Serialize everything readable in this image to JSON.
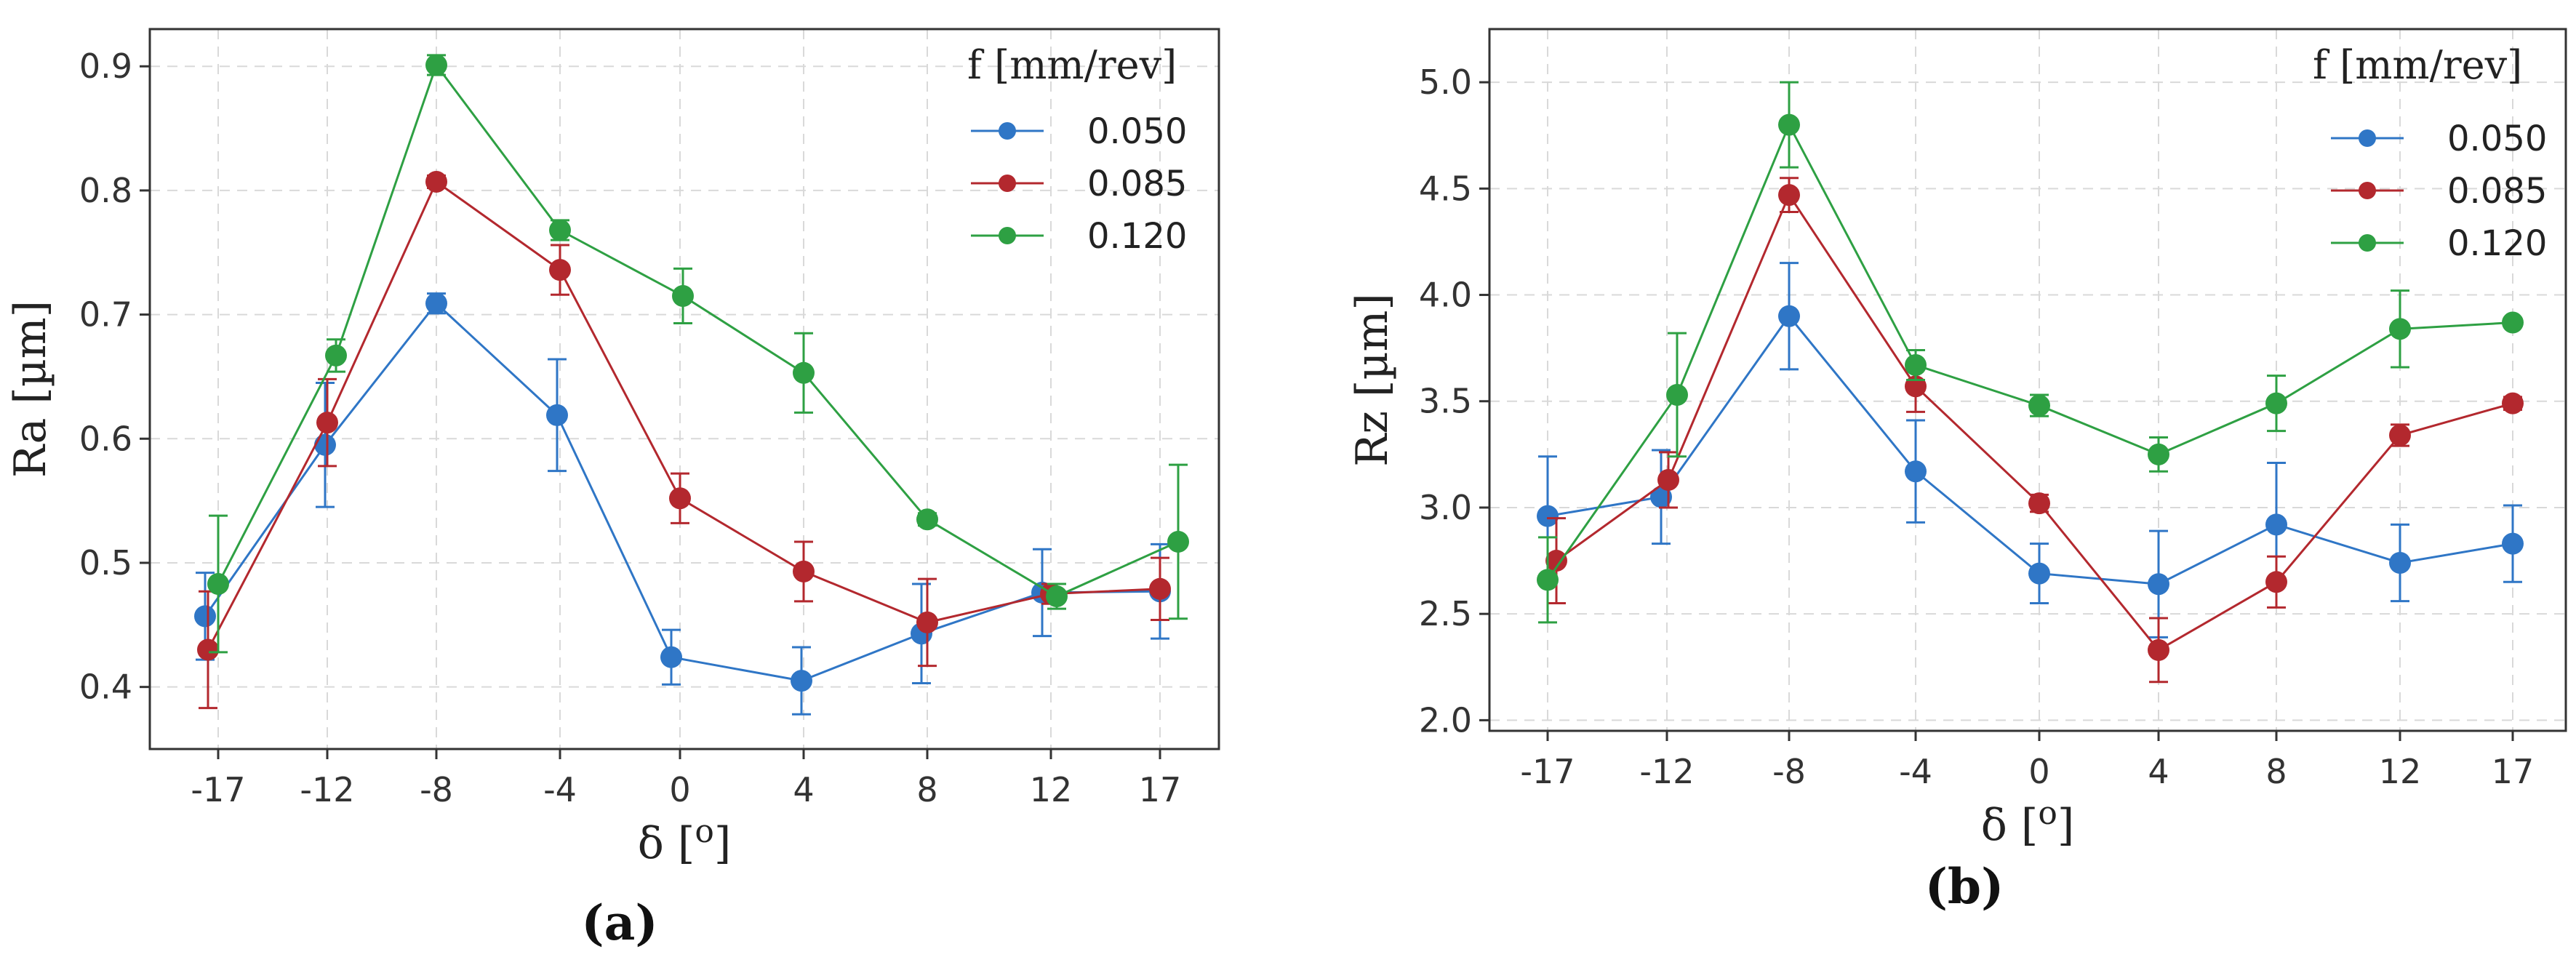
{
  "legend": {
    "title": "f [mm/rev]",
    "entries": [
      "0.050",
      "0.085",
      "0.120"
    ]
  },
  "colors": {
    "0.050": "#2f76c6",
    "0.085": "#b3282e",
    "0.120": "#2ea043"
  },
  "panels": [
    "(a)",
    "(b)"
  ],
  "chart_data": [
    {
      "type": "line",
      "xlabel": "δ [o]",
      "ylabel": "Ra [µm]",
      "categories": [
        "-17",
        "-12",
        "-8",
        "-4",
        "0",
        "4",
        "8",
        "12",
        "17"
      ],
      "ylim": [
        0.35,
        0.93
      ],
      "yticks": [
        "0.4",
        "0.5",
        "0.6",
        "0.7",
        "0.8",
        "0.9"
      ],
      "ytick_values": [
        0.4,
        0.5,
        0.6,
        0.7,
        0.8,
        0.9
      ],
      "grid": true,
      "legend_position": "top-right",
      "series": [
        {
          "name": "0.050",
          "values": [
            0.457,
            0.595,
            0.709,
            0.619,
            0.424,
            0.405,
            0.443,
            0.476,
            0.477
          ],
          "err": [
            0.035,
            0.05,
            0.008,
            0.045,
            0.022,
            0.027,
            0.04,
            0.035,
            0.038
          ]
        },
        {
          "name": "0.085",
          "values": [
            0.43,
            0.613,
            0.807,
            0.736,
            0.552,
            0.493,
            0.452,
            0.475,
            0.479
          ],
          "err": [
            0.047,
            0.035,
            0.005,
            0.02,
            0.02,
            0.024,
            0.035,
            0.008,
            0.025
          ]
        },
        {
          "name": "0.120",
          "values": [
            0.483,
            0.667,
            0.901,
            0.768,
            0.715,
            0.653,
            0.535,
            0.473,
            0.517
          ],
          "err": [
            0.055,
            0.013,
            0.008,
            0.008,
            0.022,
            0.032,
            0.005,
            0.01,
            0.062
          ]
        }
      ]
    },
    {
      "type": "line",
      "xlabel": "δ [o]",
      "ylabel": "Rz [µm]",
      "categories": [
        "-17",
        "-12",
        "-8",
        "-4",
        "0",
        "4",
        "8",
        "12",
        "17"
      ],
      "ylim": [
        1.95,
        5.25
      ],
      "yticks": [
        "2.0",
        "2.5",
        "3.0",
        "3.5",
        "4.0",
        "4.5",
        "5.0"
      ],
      "ytick_values": [
        2.0,
        2.5,
        3.0,
        3.5,
        4.0,
        4.5,
        5.0
      ],
      "grid": true,
      "legend_position": "top-right",
      "series": [
        {
          "name": "0.050",
          "values": [
            2.96,
            3.05,
            3.9,
            3.17,
            2.69,
            2.64,
            2.92,
            2.74,
            2.83
          ],
          "err": [
            0.28,
            0.22,
            0.25,
            0.24,
            0.14,
            0.25,
            0.29,
            0.18,
            0.18
          ]
        },
        {
          "name": "0.085",
          "values": [
            2.75,
            3.13,
            4.47,
            3.57,
            3.02,
            2.33,
            2.65,
            3.34,
            3.49
          ],
          "err": [
            0.2,
            0.13,
            0.08,
            0.12,
            0.04,
            0.15,
            0.12,
            0.05,
            0.03
          ]
        },
        {
          "name": "0.120",
          "values": [
            2.66,
            3.53,
            4.8,
            3.67,
            3.48,
            3.25,
            3.49,
            3.84,
            3.87
          ],
          "err": [
            0.2,
            0.29,
            0.2,
            0.07,
            0.05,
            0.08,
            0.13,
            0.18,
            0.02
          ]
        }
      ]
    }
  ]
}
